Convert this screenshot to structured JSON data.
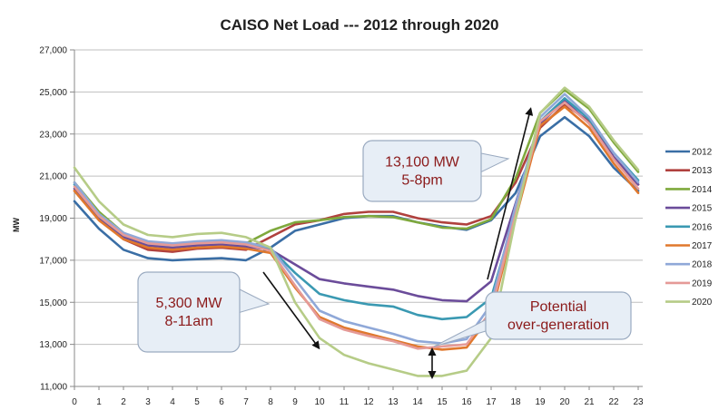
{
  "chart_data": {
    "type": "line",
    "title": "CAISO Net Load --- 2012 through 2020",
    "xlabel": "",
    "ylabel": "MW",
    "ylim": [
      11000,
      27000
    ],
    "yticks": [
      "11,000",
      "13,000",
      "15,000",
      "17,000",
      "19,000",
      "21,000",
      "23,000",
      "25,000",
      "27,000"
    ],
    "x": [
      0,
      1,
      2,
      3,
      4,
      5,
      6,
      7,
      8,
      9,
      10,
      11,
      12,
      13,
      14,
      15,
      16,
      17,
      18,
      19,
      20,
      21,
      22,
      23
    ],
    "legend_position": "right",
    "grid": "horizontal",
    "series": [
      {
        "name": "2012",
        "color": "#3a6ea5",
        "values": [
          19800,
          18500,
          17500,
          17100,
          17000,
          17050,
          17100,
          17000,
          17600,
          18400,
          18700,
          19000,
          19100,
          19100,
          18800,
          18600,
          18450,
          18900,
          20200,
          22900,
          23800,
          22900,
          21400,
          20300
        ]
      },
      {
        "name": "2013",
        "color": "#b0413e",
        "values": [
          20300,
          19000,
          18000,
          17500,
          17400,
          17550,
          17600,
          17500,
          18100,
          18700,
          18900,
          19200,
          19300,
          19300,
          19000,
          18800,
          18700,
          19100,
          20700,
          23300,
          24400,
          23600,
          21900,
          20600
        ]
      },
      {
        "name": "2014",
        "color": "#7fa93d",
        "values": [
          20700,
          19300,
          18300,
          17800,
          17700,
          17850,
          17900,
          17800,
          18400,
          18800,
          18900,
          19050,
          19100,
          19050,
          18800,
          18550,
          18500,
          18950,
          20900,
          24000,
          25100,
          24200,
          22600,
          21200
        ]
      },
      {
        "name": "2015",
        "color": "#6b4c9a",
        "values": [
          20400,
          19000,
          18100,
          17700,
          17600,
          17700,
          17750,
          17650,
          17500,
          16800,
          16100,
          15900,
          15750,
          15600,
          15300,
          15100,
          15050,
          16000,
          19700,
          23500,
          24600,
          23500,
          21900,
          20600
        ]
      },
      {
        "name": "2016",
        "color": "#3a99b2",
        "values": [
          20600,
          19100,
          18200,
          17800,
          17700,
          17800,
          17850,
          17750,
          17550,
          16400,
          15400,
          15100,
          14900,
          14800,
          14400,
          14200,
          14300,
          15200,
          19300,
          23600,
          24700,
          23700,
          22100,
          20800
        ]
      },
      {
        "name": "2017",
        "color": "#e0782d",
        "values": [
          20300,
          18900,
          18000,
          17600,
          17500,
          17600,
          17650,
          17550,
          17350,
          15700,
          14300,
          13800,
          13500,
          13200,
          12900,
          12750,
          12850,
          14400,
          19000,
          23400,
          24300,
          23300,
          21600,
          20200
        ]
      },
      {
        "name": "2018",
        "color": "#8fa8d8",
        "values": [
          20700,
          19200,
          18300,
          17900,
          17800,
          17900,
          17950,
          17850,
          17600,
          16100,
          14600,
          14100,
          13800,
          13500,
          13150,
          13050,
          13250,
          14900,
          19600,
          23800,
          24900,
          23800,
          22100,
          20700
        ]
      },
      {
        "name": "2019",
        "color": "#e59a97",
        "values": [
          20500,
          19100,
          18200,
          17800,
          17700,
          17800,
          17850,
          17750,
          17450,
          15800,
          14200,
          13700,
          13400,
          13150,
          12800,
          12900,
          13000,
          14600,
          19200,
          23600,
          24500,
          23500,
          21800,
          20400
        ]
      },
      {
        "name": "2020",
        "color": "#b6cc87",
        "values": [
          21400,
          19800,
          18700,
          18200,
          18100,
          18250,
          18300,
          18100,
          17600,
          15000,
          13300,
          12500,
          12100,
          11800,
          11500,
          11500,
          11750,
          13300,
          19000,
          24000,
          25200,
          24300,
          22700,
          21300
        ]
      }
    ],
    "annotations": [
      {
        "text": "13,100 MW",
        "text2": "5-8pm"
      },
      {
        "text": "5,300 MW",
        "text2": "8-11am"
      },
      {
        "text": "Potential",
        "text2": "over-generation"
      }
    ]
  }
}
